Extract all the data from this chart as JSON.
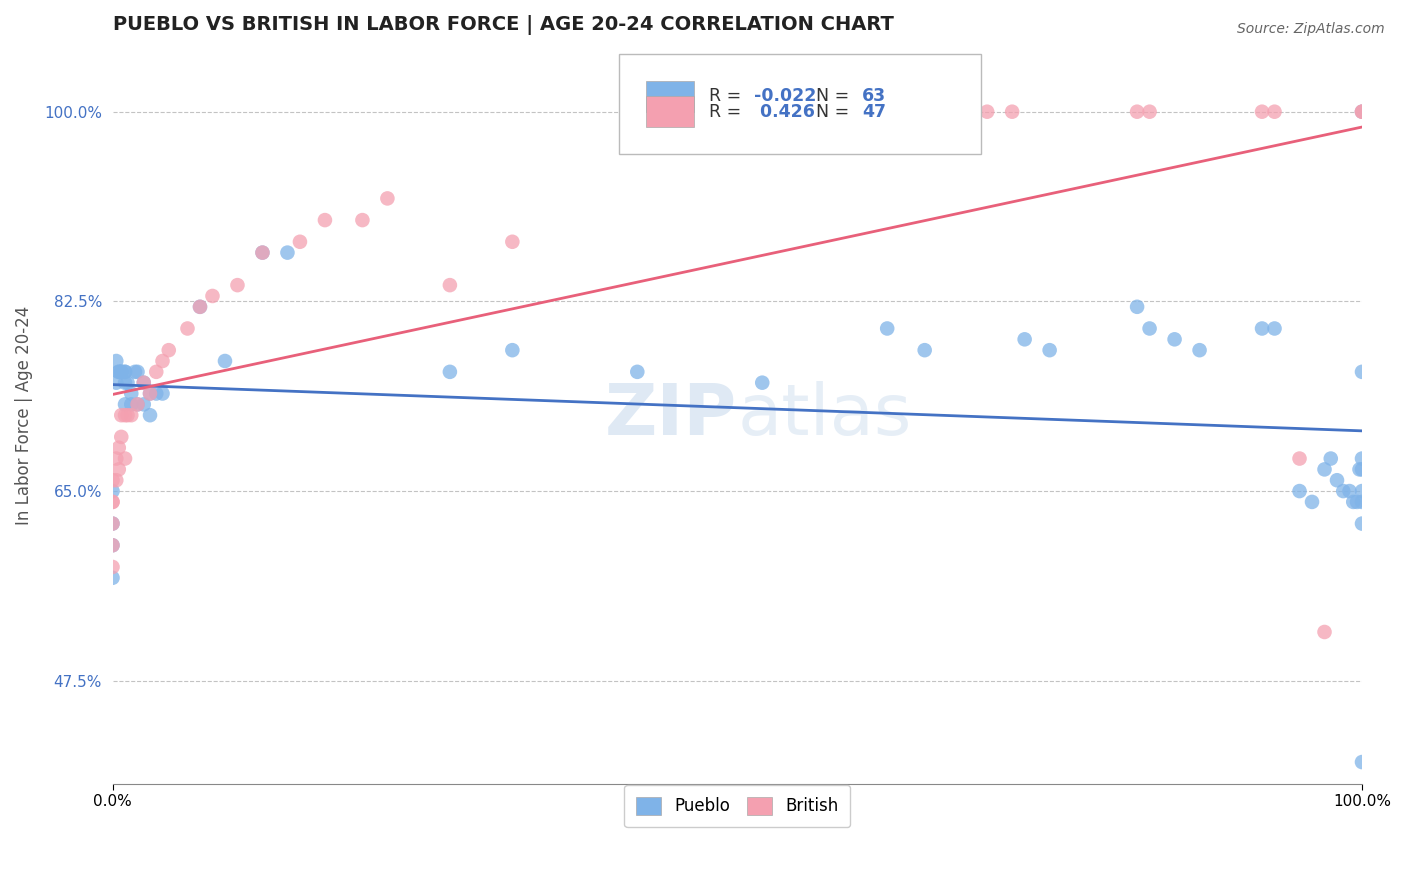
{
  "title": "PUEBLO VS BRITISH IN LABOR FORCE | AGE 20-24 CORRELATION CHART",
  "source": "Source: ZipAtlas.com",
  "ylabel": "In Labor Force | Age 20-24",
  "xlim": [
    0.0,
    1.0
  ],
  "ylim": [
    0.38,
    1.06
  ],
  "yticks": [
    0.475,
    0.65,
    0.825,
    1.0
  ],
  "ytick_labels": [
    "47.5%",
    "65.0%",
    "82.5%",
    "100.0%"
  ],
  "xtick_labels": [
    "0.0%",
    "100.0%"
  ],
  "pueblo_color": "#7fb3e8",
  "british_color": "#f4a0b0",
  "pueblo_line_color": "#4472c4",
  "british_line_color": "#e8607a",
  "R_pueblo": -0.022,
  "N_pueblo": 63,
  "R_british": 0.426,
  "N_british": 47,
  "watermark": "ZIPatlas",
  "pueblo_x": [
    0.0,
    0.0,
    0.0,
    0.0,
    0.003,
    0.003,
    0.005,
    0.005,
    0.007,
    0.007,
    0.007,
    0.01,
    0.01,
    0.01,
    0.01,
    0.012,
    0.015,
    0.015,
    0.018,
    0.02,
    0.02,
    0.025,
    0.025,
    0.03,
    0.03,
    0.035,
    0.04,
    0.07,
    0.09,
    0.12,
    0.14,
    0.27,
    0.32,
    0.42,
    0.52,
    0.62,
    0.65,
    0.73,
    0.75,
    0.82,
    0.83,
    0.85,
    0.87,
    0.92,
    0.93,
    0.95,
    0.96,
    0.97,
    0.975,
    0.98,
    0.985,
    0.99,
    0.993,
    0.996,
    0.998,
    1.0,
    1.0,
    1.0,
    1.0,
    1.0,
    1.0,
    1.0,
    1.0
  ],
  "pueblo_y": [
    0.65,
    0.62,
    0.6,
    0.57,
    0.75,
    0.77,
    0.76,
    0.76,
    0.76,
    0.76,
    0.76,
    0.75,
    0.76,
    0.76,
    0.73,
    0.75,
    0.74,
    0.73,
    0.76,
    0.76,
    0.73,
    0.73,
    0.75,
    0.72,
    0.74,
    0.74,
    0.74,
    0.82,
    0.77,
    0.87,
    0.87,
    0.76,
    0.78,
    0.76,
    0.75,
    0.8,
    0.78,
    0.79,
    0.78,
    0.82,
    0.8,
    0.79,
    0.78,
    0.8,
    0.8,
    0.65,
    0.64,
    0.67,
    0.68,
    0.66,
    0.65,
    0.65,
    0.64,
    0.64,
    0.67,
    0.67,
    0.65,
    0.64,
    0.62,
    0.76,
    0.68,
    0.4,
    1.0
  ],
  "british_x": [
    0.0,
    0.0,
    0.0,
    0.0,
    0.0,
    0.0,
    0.003,
    0.003,
    0.005,
    0.005,
    0.007,
    0.007,
    0.01,
    0.01,
    0.012,
    0.015,
    0.02,
    0.025,
    0.03,
    0.035,
    0.04,
    0.045,
    0.06,
    0.07,
    0.08,
    0.1,
    0.12,
    0.15,
    0.17,
    0.2,
    0.22,
    0.27,
    0.32,
    0.42,
    0.47,
    0.52,
    0.57,
    0.7,
    0.72,
    0.82,
    0.83,
    0.92,
    0.93,
    0.95,
    0.97,
    1.0,
    1.0
  ],
  "british_y": [
    0.58,
    0.6,
    0.62,
    0.64,
    0.64,
    0.66,
    0.66,
    0.68,
    0.67,
    0.69,
    0.7,
    0.72,
    0.68,
    0.72,
    0.72,
    0.72,
    0.73,
    0.75,
    0.74,
    0.76,
    0.77,
    0.78,
    0.8,
    0.82,
    0.83,
    0.84,
    0.87,
    0.88,
    0.9,
    0.9,
    0.92,
    0.84,
    0.88,
    1.0,
    1.0,
    1.0,
    1.0,
    1.0,
    1.0,
    1.0,
    1.0,
    1.0,
    1.0,
    0.68,
    0.52,
    1.0,
    1.0
  ]
}
